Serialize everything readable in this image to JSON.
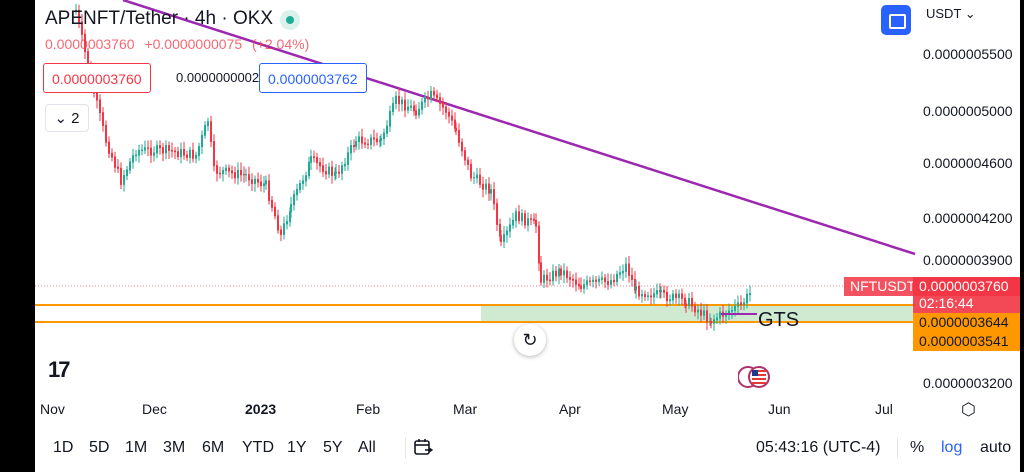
{
  "header": {
    "symbol_title": "APENFT/Tether · 4h · OKX",
    "last_price": "0.0000003760",
    "change": "+0.0000000075",
    "change_pct": "(+2.04%)",
    "sell_price": "0.0000003760",
    "spread": "0.0000000002",
    "buy_price": "0.0000003762",
    "indicators_count": "2",
    "currency": "USDT"
  },
  "colors": {
    "up": "#22ab94",
    "down": "#f23645",
    "trendline": "#9c27b0",
    "order_line": "#ff9800",
    "zone_fill": "#c8e6c9",
    "accent": "#2962ff"
  },
  "axis": {
    "y_labels": [
      "0.0000005500",
      "0.0000005000",
      "0.0000004600",
      "0.0000004200",
      "0.0000003900",
      "0.0000003200"
    ],
    "x_labels": [
      "Nov",
      "Dec",
      "2023",
      "Feb",
      "Mar",
      "Apr",
      "May",
      "Jun",
      "Jul"
    ]
  },
  "price_tags": {
    "symbol": "NFTUSDT",
    "last": "0.0000003760",
    "countdown": "02:16:44",
    "order_1": "0.0000003644",
    "order_2": "0.0000003541"
  },
  "annotation": "GTS",
  "icons": {
    "live": "live-dot-icon",
    "fullscreen": "fullscreen-icon",
    "reset": "reset-icon",
    "settings": "chart-settings-icon",
    "calendar": "date-range-icon",
    "flag": "us-flag-icon",
    "logo": "tradingview-logo"
  },
  "logo_text": "17",
  "bottom_bar": {
    "ranges": [
      "1D",
      "5D",
      "1M",
      "3M",
      "6M",
      "YTD",
      "1Y",
      "5Y",
      "All"
    ],
    "time": "05:43:16 (UTC-4)",
    "percent": "%",
    "log": "log",
    "auto": "auto"
  }
}
